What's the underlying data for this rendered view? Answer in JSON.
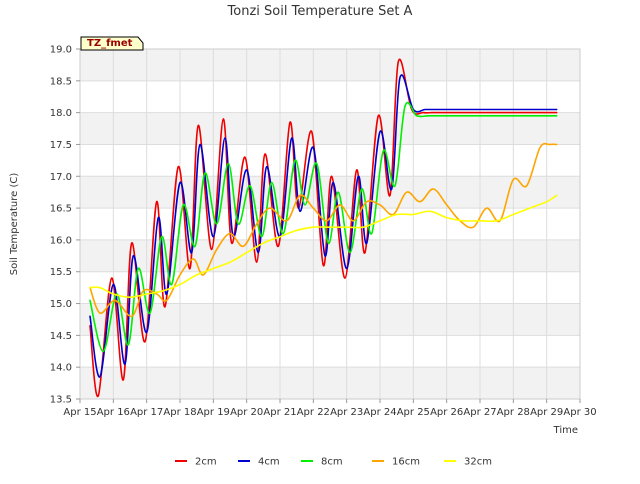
{
  "chart_data": {
    "type": "line",
    "title": "Tonzi Soil Temperature Set A",
    "xlabel": "Time",
    "ylabel": "Soil Temperature (C)",
    "annotation": "TZ_fmet",
    "x_ticks": [
      "Apr 15",
      "Apr 16",
      "Apr 17",
      "Apr 18",
      "Apr 19",
      "Apr 20",
      "Apr 21",
      "Apr 22",
      "Apr 23",
      "Apr 24",
      "Apr 25",
      "Apr 26",
      "Apr 27",
      "Apr 28",
      "Apr 29",
      "Apr 30"
    ],
    "xlim": [
      15,
      30
    ],
    "ylim": [
      13.5,
      19.0
    ],
    "y_ticks": [
      "13.5",
      "14.0",
      "14.5",
      "15.0",
      "15.5",
      "16.0",
      "16.5",
      "17.0",
      "17.5",
      "18.0",
      "18.5",
      "19.0"
    ],
    "grid": true,
    "legend_position": "bottom",
    "series": [
      {
        "name": "2cm",
        "color": "#ee0000",
        "x": [
          15.3,
          15.55,
          15.95,
          16.3,
          16.55,
          16.95,
          17.3,
          17.55,
          17.95,
          18.3,
          18.55,
          18.95,
          19.3,
          19.55,
          19.95,
          20.3,
          20.55,
          20.95,
          21.3,
          21.55,
          21.95,
          22.3,
          22.55,
          22.95,
          23.3,
          23.55,
          23.95,
          24.3,
          24.55,
          24.95,
          25.3,
          25.55,
          25.95,
          26.3,
          26.55,
          26.95,
          27.3,
          27.55,
          27.95,
          28.3,
          28.55,
          28.95,
          29.3
        ],
        "y": [
          14.65,
          13.55,
          15.4,
          13.8,
          15.95,
          14.4,
          16.6,
          14.95,
          17.15,
          15.55,
          17.8,
          15.85,
          17.9,
          15.95,
          17.3,
          15.65,
          17.35,
          15.9,
          17.85,
          16.5,
          17.7,
          15.6,
          17.0,
          15.4,
          17.1,
          15.8,
          17.95,
          16.7,
          18.8,
          18.05,
          18.0,
          18.0,
          18.0,
          18.0,
          18.0,
          18.0,
          18.0,
          18.0,
          18.0,
          18.0,
          18.0,
          18.0,
          18.0
        ]
      },
      {
        "name": "4cm",
        "color": "#0000cc",
        "x": [
          15.3,
          15.6,
          16.0,
          16.35,
          16.6,
          17.0,
          17.35,
          17.6,
          18.0,
          18.35,
          18.6,
          19.0,
          19.35,
          19.6,
          20.0,
          20.35,
          20.6,
          21.0,
          21.35,
          21.6,
          22.0,
          22.35,
          22.6,
          23.0,
          23.35,
          23.6,
          24.0,
          24.35,
          24.6,
          25.0,
          25.35,
          25.6,
          26.0,
          26.35,
          26.6,
          27.0,
          27.35,
          27.6,
          28.0,
          28.35,
          28.6,
          29.0,
          29.3
        ],
        "y": [
          14.8,
          13.85,
          15.3,
          14.05,
          15.75,
          14.55,
          16.35,
          15.15,
          16.9,
          15.8,
          17.5,
          16.05,
          17.6,
          16.05,
          17.1,
          15.8,
          17.15,
          16.05,
          17.6,
          16.45,
          17.45,
          15.75,
          16.9,
          15.55,
          17.0,
          15.95,
          17.7,
          16.8,
          18.55,
          18.05,
          18.05,
          18.05,
          18.05,
          18.05,
          18.05,
          18.05,
          18.05,
          18.05,
          18.05,
          18.05,
          18.05,
          18.05,
          18.05
        ]
      },
      {
        "name": "8cm",
        "color": "#00ee00",
        "x": [
          15.3,
          15.7,
          16.1,
          16.45,
          16.75,
          17.1,
          17.45,
          17.75,
          18.1,
          18.45,
          18.75,
          19.1,
          19.45,
          19.75,
          20.1,
          20.45,
          20.75,
          21.1,
          21.45,
          21.75,
          22.1,
          22.45,
          22.75,
          23.1,
          23.45,
          23.75,
          24.1,
          24.45,
          24.75,
          25.1,
          25.45,
          25.75,
          26.1,
          26.45,
          26.75,
          27.1,
          27.45,
          27.75,
          28.1,
          28.45,
          28.75,
          29.1,
          29.3
        ],
        "y": [
          15.05,
          14.25,
          15.15,
          14.35,
          15.55,
          14.85,
          16.05,
          15.3,
          16.55,
          15.9,
          17.05,
          16.25,
          17.2,
          16.25,
          16.85,
          16.05,
          16.9,
          16.1,
          17.25,
          16.55,
          17.2,
          15.95,
          16.75,
          15.8,
          16.8,
          16.1,
          17.4,
          16.85,
          18.1,
          17.95,
          17.95,
          17.95,
          17.95,
          17.95,
          17.95,
          17.95,
          17.95,
          17.95,
          17.95,
          17.95,
          17.95,
          17.95,
          17.95
        ]
      },
      {
        "name": "16cm",
        "color": "#ffa500",
        "x": [
          15.3,
          15.6,
          16.05,
          16.55,
          16.9,
          17.3,
          17.6,
          18.0,
          18.4,
          18.7,
          19.1,
          19.5,
          19.9,
          20.3,
          20.7,
          21.2,
          21.6,
          22.0,
          22.4,
          22.8,
          23.2,
          23.6,
          24.0,
          24.4,
          24.8,
          25.2,
          25.6,
          26.0,
          26.4,
          26.8,
          27.2,
          27.6,
          28.0,
          28.4,
          28.8,
          29.1,
          29.3
        ],
        "y": [
          15.25,
          14.85,
          15.05,
          14.8,
          15.2,
          15.15,
          15.05,
          15.45,
          15.7,
          15.45,
          15.85,
          16.1,
          15.9,
          16.25,
          16.5,
          16.3,
          16.7,
          16.5,
          16.3,
          16.55,
          16.3,
          16.6,
          16.55,
          16.4,
          16.75,
          16.6,
          16.8,
          16.55,
          16.3,
          16.2,
          16.5,
          16.3,
          16.95,
          16.85,
          17.45,
          17.5,
          17.5
        ]
      },
      {
        "name": "32cm",
        "color": "#ffff00",
        "x": [
          15.3,
          15.6,
          16.0,
          16.5,
          17.0,
          17.5,
          18.0,
          18.5,
          19.0,
          19.5,
          20.0,
          20.5,
          21.0,
          21.5,
          22.0,
          22.5,
          23.0,
          23.5,
          24.0,
          24.5,
          25.0,
          25.5,
          26.0,
          26.5,
          27.0,
          27.5,
          28.0,
          28.5,
          29.0,
          29.3
        ],
        "y": [
          15.25,
          15.25,
          15.15,
          15.1,
          15.15,
          15.2,
          15.3,
          15.45,
          15.55,
          15.65,
          15.8,
          15.95,
          16.05,
          16.15,
          16.2,
          16.2,
          16.2,
          16.2,
          16.3,
          16.4,
          16.4,
          16.45,
          16.35,
          16.3,
          16.3,
          16.3,
          16.4,
          16.5,
          16.6,
          16.7
        ]
      }
    ]
  }
}
